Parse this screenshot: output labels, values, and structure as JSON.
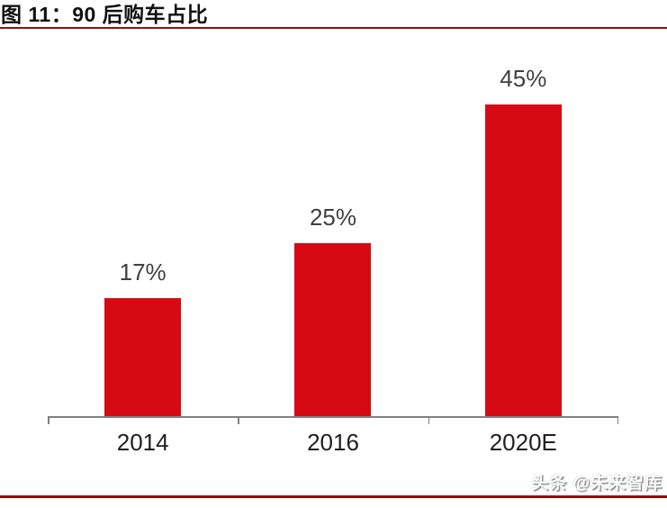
{
  "header": {
    "title": "图 11：90 后购车占比"
  },
  "chart_data": {
    "type": "bar",
    "title": "90 后购车占比",
    "categories": [
      "2014",
      "2016",
      "2020E"
    ],
    "values": [
      17,
      25,
      45
    ],
    "data_labels": [
      "17%",
      "25%",
      "45%"
    ],
    "unit": "%",
    "xlabel": "",
    "ylabel": "",
    "ylim": [
      0,
      52.5
    ],
    "grid": false,
    "legend": "none",
    "bar_color": "#D60A12",
    "data_label_color": "#404040",
    "axis_color": "#808080"
  },
  "footer": {
    "watermark": "头条 @未来智库"
  },
  "style": {
    "rule_red_top": "#9B0F0F",
    "rule_red_bottom": "#8E0E0E",
    "background": "#ffffff"
  }
}
